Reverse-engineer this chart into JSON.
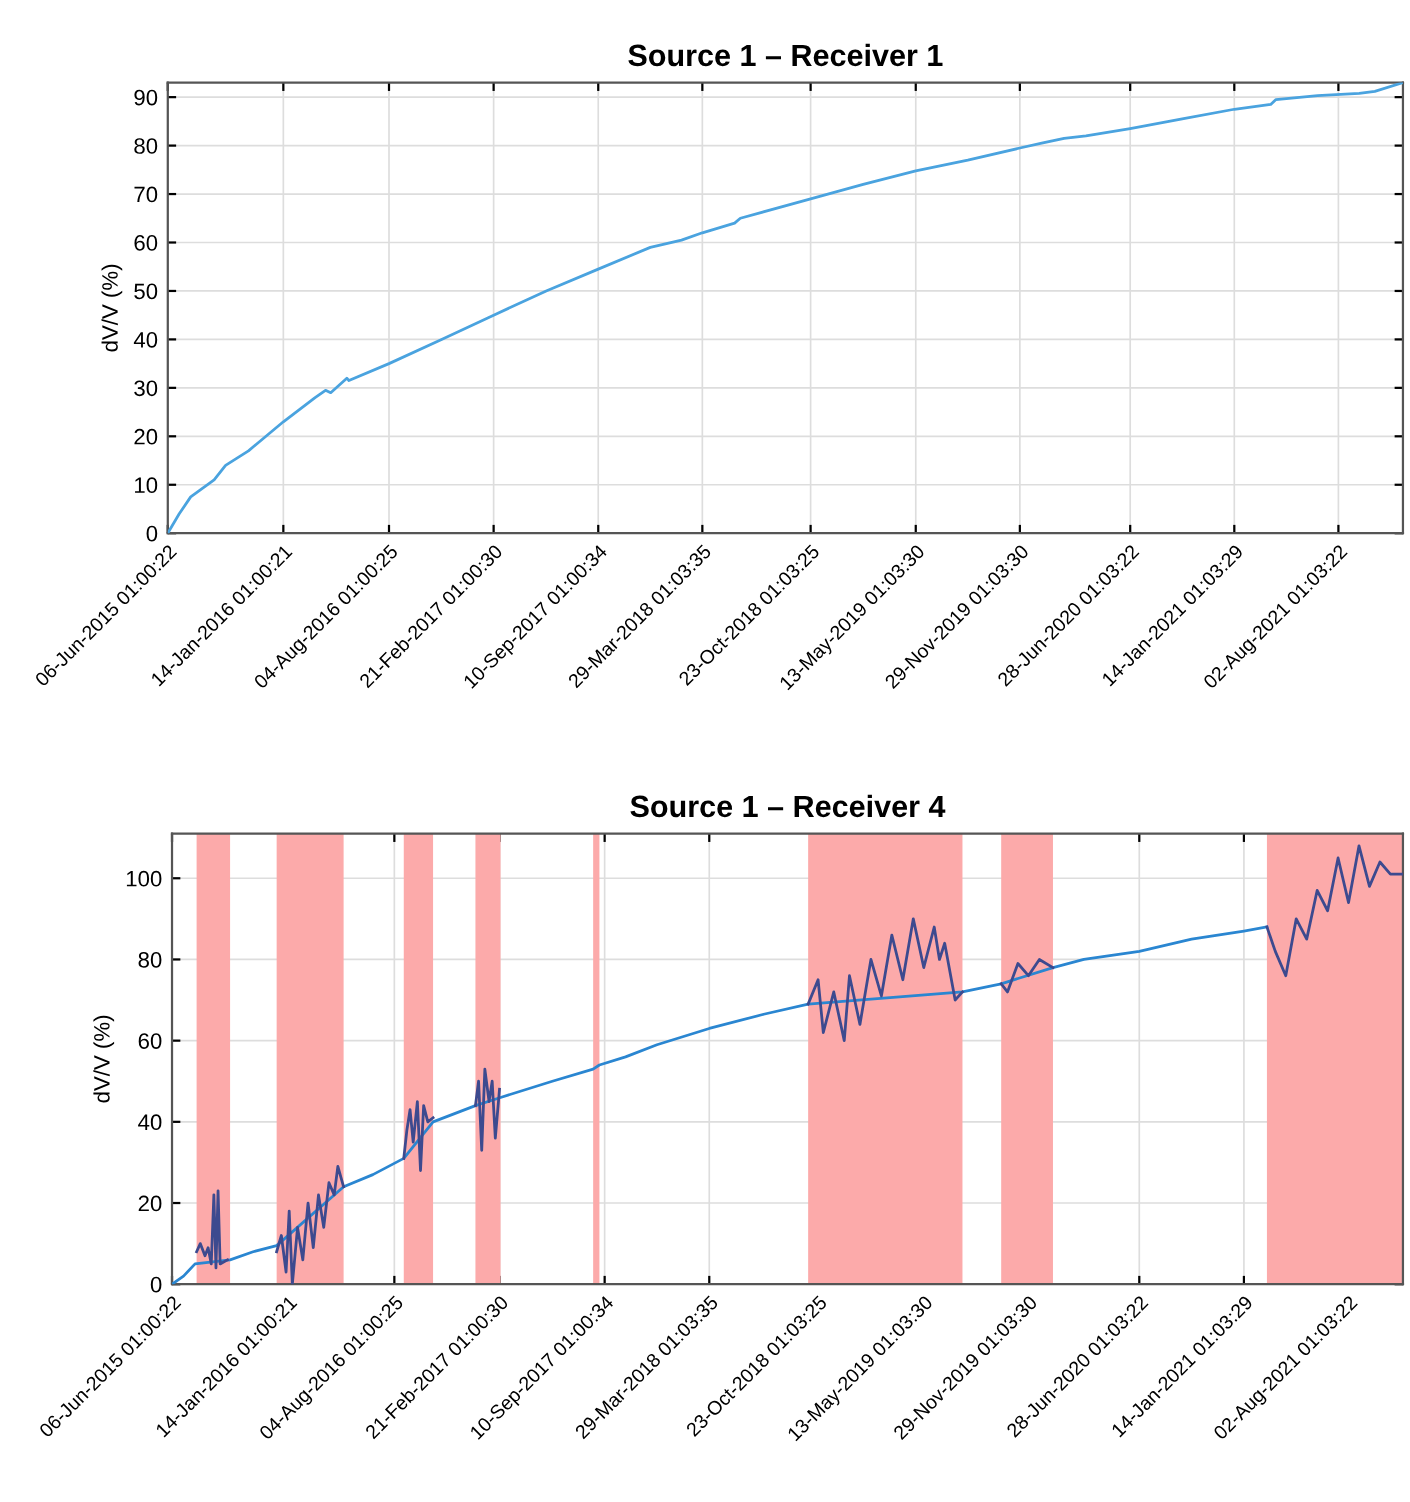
{
  "chart_data": [
    {
      "type": "line",
      "title": "Source 1 – Receiver 1",
      "ylabel": "dV/V (%)",
      "xlim": [
        "2015-06-06",
        "2021-12-04"
      ],
      "ylim": [
        0,
        93
      ],
      "yticks": [
        0,
        10,
        20,
        30,
        40,
        50,
        60,
        70,
        80,
        90
      ],
      "xticks": [
        {
          "value": "2015-06-06",
          "label": "06-Jun-2015 01:00:22"
        },
        {
          "value": "2016-01-14",
          "label": "14-Jan-2016 01:00:21"
        },
        {
          "value": "2016-08-04",
          "label": "04-Aug-2016 01:00:25"
        },
        {
          "value": "2017-02-21",
          "label": "21-Feb-2017 01:00:30"
        },
        {
          "value": "2017-09-10",
          "label": "10-Sep-2017 01:00:34"
        },
        {
          "value": "2018-03-29",
          "label": "29-Mar-2018 01:03:35"
        },
        {
          "value": "2018-10-23",
          "label": "23-Oct-2018 01:03:25"
        },
        {
          "value": "2019-05-13",
          "label": "13-May-2019 01:03:30"
        },
        {
          "value": "2019-11-29",
          "label": "29-Nov-2019 01:03:30"
        },
        {
          "value": "2020-06-28",
          "label": "28-Jun-2020 01:03:22"
        },
        {
          "value": "2021-01-14",
          "label": "14-Jan-2021 01:03:29"
        },
        {
          "value": "2021-08-02",
          "label": "02-Aug-2021 01:03:22"
        }
      ],
      "grid": true,
      "series": [
        {
          "color": "#4aa3df",
          "x": [
            "2015-06-06",
            "2015-06-28",
            "2015-07-20",
            "2015-09-03",
            "2015-09-25",
            "2015-11-08",
            "2016-01-14",
            "2016-03-15",
            "2016-04-04",
            "2016-04-14",
            "2016-05-15",
            "2016-05-19",
            "2016-08-04",
            "2016-11-13",
            "2017-02-21",
            "2017-06-02",
            "2017-09-10",
            "2017-12-19",
            "2018-02-17",
            "2018-03-29",
            "2018-05-30",
            "2018-06-10",
            "2018-10-23",
            "2019-02-01",
            "2019-05-13",
            "2019-08-21",
            "2019-11-29",
            "2020-01-10",
            "2020-02-22",
            "2020-04-04",
            "2020-06-28",
            "2020-10-06",
            "2021-01-14",
            "2021-03-25",
            "2021-04-04",
            "2021-06-23",
            "2021-09-11",
            "2021-10-11",
            "2021-12-04"
          ],
          "values": [
            0,
            4,
            7.5,
            11,
            14,
            17,
            23,
            28,
            29.5,
            29,
            32,
            31.5,
            35,
            40,
            45,
            50,
            54.5,
            59,
            60.5,
            62,
            64,
            65,
            69,
            72,
            74.8,
            77,
            79.5,
            80.5,
            81.5,
            82,
            83.5,
            85.5,
            87.5,
            88.5,
            89.5,
            90.3,
            90.8,
            91.2,
            93
          ]
        }
      ]
    },
    {
      "type": "line",
      "title": "Source 1 – Receiver 4",
      "ylabel": "dV/V (%)",
      "xlim": [
        "2015-06-06",
        "2021-11-14"
      ],
      "ylim": [
        0,
        111
      ],
      "yticks": [
        0,
        20,
        40,
        60,
        80,
        100
      ],
      "xticks": [
        {
          "value": "2015-06-06",
          "label": "06-Jun-2015 01:00:22"
        },
        {
          "value": "2016-01-14",
          "label": "14-Jan-2016 01:00:21"
        },
        {
          "value": "2016-08-04",
          "label": "04-Aug-2016 01:00:25"
        },
        {
          "value": "2017-02-21",
          "label": "21-Feb-2017 01:00:30"
        },
        {
          "value": "2017-09-10",
          "label": "10-Sep-2017 01:00:34"
        },
        {
          "value": "2018-03-29",
          "label": "29-Mar-2018 01:03:35"
        },
        {
          "value": "2018-10-23",
          "label": "23-Oct-2018 01:03:25"
        },
        {
          "value": "2019-05-13",
          "label": "13-May-2019 01:03:30"
        },
        {
          "value": "2019-11-29",
          "label": "29-Nov-2019 01:03:30"
        },
        {
          "value": "2020-06-28",
          "label": "28-Jun-2020 01:03:22"
        },
        {
          "value": "2021-01-14",
          "label": "14-Jan-2021 01:03:29"
        },
        {
          "value": "2021-08-02",
          "label": "02-Aug-2021 01:03:22"
        }
      ],
      "grid": true,
      "bands": [
        {
          "axis": "x",
          "from": "2015-07-23",
          "to": "2015-09-25",
          "color": "#fcaaaa"
        },
        {
          "axis": "x",
          "from": "2015-12-23",
          "to": "2016-04-29",
          "color": "#fcaaaa"
        },
        {
          "axis": "x",
          "from": "2016-08-22",
          "to": "2016-10-17",
          "color": "#fcaaaa"
        },
        {
          "axis": "x",
          "from": "2017-01-06",
          "to": "2017-02-23",
          "color": "#fcaaaa"
        },
        {
          "axis": "x",
          "from": "2017-08-19",
          "to": "2017-08-31",
          "color": "#fcaaaa"
        },
        {
          "axis": "x",
          "from": "2018-10-04",
          "to": "2019-07-26",
          "color": "#fcaaaa"
        },
        {
          "axis": "x",
          "from": "2019-10-08",
          "to": "2020-01-15",
          "color": "#fcaaaa"
        },
        {
          "axis": "x",
          "from": "2021-02-27",
          "to": "2021-11-14",
          "color": "#fcaaaa"
        }
      ],
      "series": [
        {
          "color": "#2a86d1",
          "x": [
            "2015-06-06",
            "2015-06-28",
            "2015-07-20",
            "2015-09-25",
            "2015-11-08",
            "2015-12-23",
            "2016-04-29",
            "2016-06-24",
            "2016-08-22",
            "2016-10-17",
            "2017-01-06",
            "2017-02-23",
            "2017-06-02",
            "2017-08-19",
            "2017-08-31",
            "2017-10-20",
            "2017-12-19",
            "2018-03-29",
            "2018-07-11",
            "2018-10-04",
            "2019-07-26",
            "2019-10-08",
            "2020-01-15",
            "2020-03-14",
            "2020-06-28",
            "2020-10-06",
            "2021-01-14",
            "2021-02-27"
          ],
          "values": [
            0,
            2,
            5,
            6,
            8,
            9.5,
            24,
            27,
            31,
            40,
            44,
            46,
            50,
            53,
            54,
            56,
            59,
            63,
            66.5,
            69,
            72,
            74,
            78,
            80,
            82,
            85,
            87,
            88
          ]
        },
        {
          "color": "#3d4a8f",
          "x": [
            "2015-07-23",
            "2015-07-30",
            "2015-08-08",
            "2015-08-14",
            "2015-08-20",
            "2015-08-25",
            "2015-08-29",
            "2015-09-02",
            "2015-09-06",
            "2015-09-20",
            "2015-11-01",
            "2015-12-23",
            "2016-01-01",
            "2016-01-10",
            "2016-01-16",
            "2016-01-22",
            "2016-02-01",
            "2016-02-11",
            "2016-02-21",
            "2016-03-02",
            "2016-03-12",
            "2016-03-22",
            "2016-04-01",
            "2016-04-11",
            "2016-04-18",
            "2016-04-29",
            "2016-06-01",
            "2016-08-22",
            "2016-08-28",
            "2016-09-03",
            "2016-09-09",
            "2016-09-17",
            "2016-09-23",
            "2016-09-29",
            "2016-10-07",
            "2016-10-17",
            "2016-12-01",
            "2017-01-06",
            "2017-01-12",
            "2017-01-18",
            "2017-01-24",
            "2017-02-01",
            "2017-02-07",
            "2017-02-13",
            "2017-02-21",
            "2018-01-01",
            "2018-10-04",
            "2018-10-23",
            "2018-11-02",
            "2018-11-22",
            "2018-12-12",
            "2018-12-22",
            "2019-01-11",
            "2019-02-01",
            "2019-02-21",
            "2019-03-13",
            "2019-04-03",
            "2019-04-23",
            "2019-05-13",
            "2019-06-02",
            "2019-06-12",
            "2019-06-22",
            "2019-07-12",
            "2019-07-26",
            "2019-09-01",
            "2019-10-08",
            "2019-10-20",
            "2019-11-09",
            "2019-11-29",
            "2019-12-20",
            "2020-01-15",
            "2020-06-01",
            "2021-02-27",
            "2021-03-15",
            "2021-04-04",
            "2021-04-24",
            "2021-05-14",
            "2021-06-03",
            "2021-06-23",
            "2021-07-13",
            "2021-08-02",
            "2021-08-22",
            "2021-09-11",
            "2021-10-01",
            "2021-10-21",
            "2021-11-14"
          ],
          "values": [
            8,
            10,
            7,
            9,
            5,
            22,
            4,
            23,
            5,
            6,
            null,
            8,
            12,
            3,
            18,
            0,
            14,
            6,
            20,
            9,
            22,
            14,
            25,
            22,
            29,
            24,
            null,
            31,
            38,
            43,
            35,
            45,
            28,
            44,
            40,
            41,
            null,
            44,
            50,
            33,
            53,
            45,
            50,
            36,
            48,
            null,
            69,
            75,
            62,
            72,
            60,
            76,
            64,
            80,
            71,
            86,
            75,
            90,
            78,
            88,
            80,
            84,
            70,
            72,
            null,
            74,
            72,
            79,
            76,
            80,
            78,
            null,
            88,
            82,
            76,
            90,
            85,
            97,
            92,
            105,
            94,
            108,
            98,
            104,
            101,
            101
          ]
        }
      ]
    }
  ]
}
